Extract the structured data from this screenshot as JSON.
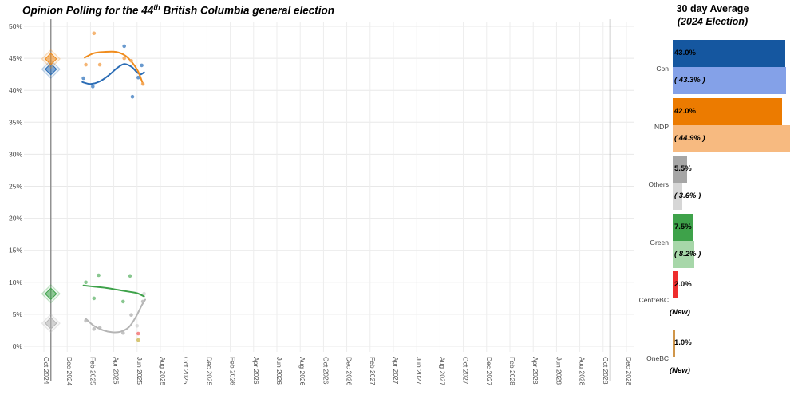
{
  "chart_data": {
    "type": "scatter",
    "title": {
      "prefix": "Opinion Polling for the 44",
      "superscript": "th",
      "suffix": " British Columbia general election"
    },
    "x_axis": {
      "unit": "months_after_oct_2024",
      "range": [
        -1.7,
        50.7
      ],
      "tick_interval_months": 2,
      "labels": [
        "Oct 2024",
        "Dec 2024",
        "Feb 2025",
        "Apr 2025",
        "Jun 2025",
        "Aug 2025",
        "Oct 2025",
        "Dec 2025",
        "Feb 2026",
        "Apr 2026",
        "Jun 2026",
        "Aug 2026",
        "Oct 2026",
        "Dec 2026",
        "Feb 2027",
        "Apr 2027",
        "Jun 2027",
        "Aug 2027",
        "Oct 2027",
        "Dec 2027",
        "Feb 2028",
        "Apr 2028",
        "Jun 2028",
        "Aug 2028",
        "Oct 2028",
        "Dec 2028"
      ]
    },
    "y_axis": {
      "min": 0,
      "max": 50,
      "step": 5,
      "labels": [
        "0%",
        "5%",
        "10%",
        "15%",
        "20%",
        "25%",
        "30%",
        "35%",
        "40%",
        "45%",
        "50%"
      ]
    },
    "grid": true,
    "election_lines": [
      {
        "name": "2024-election-day",
        "month": 0.6
      },
      {
        "name": "2028-election-day",
        "month": 48.6
      }
    ],
    "series": [
      {
        "name": "Con",
        "color": "#2a6cb5",
        "point_color": "#4e87c6",
        "election_result": 43.3,
        "points": [
          [
            3.4,
            41.9
          ],
          [
            4.2,
            40.6
          ],
          [
            6.9,
            46.9
          ],
          [
            7.6,
            39.0
          ],
          [
            8.1,
            42.0
          ],
          [
            8.4,
            43.9
          ]
        ],
        "trend": [
          [
            3.3,
            41.3
          ],
          [
            4.0,
            41.0
          ],
          [
            4.8,
            41.4
          ],
          [
            5.6,
            42.4
          ],
          [
            6.3,
            43.5
          ],
          [
            6.9,
            44.1
          ],
          [
            7.5,
            43.7
          ],
          [
            8.0,
            42.8
          ],
          [
            8.3,
            42.5
          ],
          [
            8.6,
            42.8
          ]
        ]
      },
      {
        "name": "NDP",
        "color": "#f08c1d",
        "point_color": "#f3a85c",
        "election_result": 44.9,
        "points": [
          [
            3.6,
            44.0
          ],
          [
            4.3,
            48.9
          ],
          [
            4.8,
            44.0
          ],
          [
            6.9,
            45.0
          ],
          [
            7.5,
            44.6
          ],
          [
            8.5,
            41.0
          ]
        ],
        "trend": [
          [
            3.5,
            45.1
          ],
          [
            4.3,
            45.8
          ],
          [
            5.2,
            46.0
          ],
          [
            6.2,
            46.0
          ],
          [
            7.0,
            45.4
          ],
          [
            7.6,
            44.3
          ],
          [
            8.1,
            42.9
          ],
          [
            8.5,
            41.0
          ]
        ]
      },
      {
        "name": "Green",
        "color": "#3ea24a",
        "point_color": "#74bd7c",
        "election_result": 8.2,
        "points": [
          [
            3.6,
            10.0
          ],
          [
            4.3,
            7.5
          ],
          [
            4.7,
            11.1
          ],
          [
            6.8,
            7.0
          ],
          [
            7.4,
            11.0
          ]
        ],
        "trend": [
          [
            3.4,
            9.5
          ],
          [
            4.4,
            9.3
          ],
          [
            5.4,
            9.1
          ],
          [
            6.4,
            8.8
          ],
          [
            7.4,
            8.5
          ],
          [
            8.0,
            8.3
          ],
          [
            8.6,
            7.8
          ]
        ]
      },
      {
        "name": "Others",
        "color": "#b5b5b5",
        "point_color": "#b9b9b9",
        "election_result": 3.6,
        "points": [
          [
            3.6,
            4.0
          ],
          [
            4.3,
            2.7
          ],
          [
            4.8,
            2.9
          ],
          [
            6.8,
            2.1
          ],
          [
            7.5,
            4.9
          ],
          [
            8.0,
            3.2,
            0.45
          ],
          [
            8.5,
            7.0
          ],
          [
            8.6,
            8.2,
            0.45
          ]
        ],
        "trend": [
          [
            3.6,
            4.3
          ],
          [
            4.3,
            3.2
          ],
          [
            5.1,
            2.5
          ],
          [
            5.9,
            2.2
          ],
          [
            6.6,
            2.3
          ],
          [
            7.3,
            3.0
          ],
          [
            7.9,
            4.6
          ],
          [
            8.4,
            6.4
          ],
          [
            8.7,
            7.3
          ]
        ]
      },
      {
        "name": "CentreBC",
        "color": "#ee2d2d",
        "point_color": "#ee2d2d",
        "election_result": null,
        "points": [
          [
            8.1,
            2.0,
            0.55
          ]
        ],
        "trend": []
      },
      {
        "name": "OneBC",
        "color": "#d0964a",
        "point_color": "#c9b44a",
        "election_result": null,
        "points": [
          [
            8.1,
            1.0,
            0.75
          ]
        ],
        "trend": []
      }
    ]
  },
  "legend": {
    "title": "30 day Average",
    "subtitle": "(2024 Election)",
    "rows": [
      {
        "party": "Con",
        "avg_label": "43.0%",
        "avg_value": 43.0,
        "election_label": "( 43.3% )",
        "election_value": 43.3,
        "dark_color": "#1557a0",
        "light_color": "#84a1e8"
      },
      {
        "party": "NDP",
        "avg_label": "42.0%",
        "avg_value": 42.0,
        "election_label": "( 44.9% )",
        "election_value": 44.9,
        "dark_color": "#ec7b00",
        "light_color": "#f7ba80"
      },
      {
        "party": "Others",
        "avg_label": "5.5%",
        "avg_value": 5.5,
        "election_label": "( 3.6% )",
        "election_value": 3.6,
        "dark_color": "#a6a6a6",
        "light_color": "#d6d6d6"
      },
      {
        "party": "Green",
        "avg_label": "7.5%",
        "avg_value": 7.5,
        "election_label": "( 8.2% )",
        "election_value": 8.2,
        "dark_color": "#3ea24a",
        "light_color": "#a7d7a9"
      },
      {
        "party": "CentreBC",
        "avg_label": "2.0%",
        "avg_value": 2.0,
        "election_label": "(New)",
        "election_value": null,
        "dark_color": "#ee2d2d",
        "light_color": null
      },
      {
        "party": "OneBC",
        "avg_label": "1.0%",
        "avg_value": 1.0,
        "election_label": "(New)",
        "election_value": null,
        "dark_color": "#d0964a",
        "light_color": null
      }
    ]
  }
}
